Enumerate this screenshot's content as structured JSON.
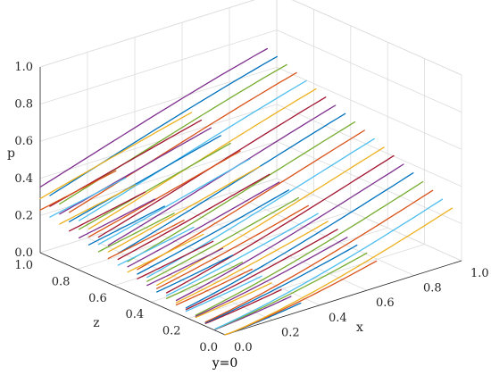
{
  "chart_data": {
    "type": "line",
    "projection": "3d",
    "title": "",
    "caption": "y=0",
    "xlabel": "x",
    "ylabel": "p",
    "zlabel": "z",
    "xlim": [
      0,
      1
    ],
    "zlim": [
      0,
      1
    ],
    "plim": [
      0,
      1
    ],
    "x_ticks": [
      "0.0",
      "0.2",
      "0.4",
      "0.6",
      "0.8",
      "1.0"
    ],
    "z_ticks": [
      "0.0",
      "0.2",
      "0.4",
      "0.6",
      "0.8",
      "1.0"
    ],
    "p_ticks": [
      "0.0",
      "0.2",
      "0.4",
      "0.6",
      "0.8",
      "1.0"
    ],
    "grid": true,
    "legend": "none",
    "series_colors": [
      "#0072BD",
      "#D95319",
      "#EDB120",
      "#7E2F8E",
      "#77AC30",
      "#4DBEEE",
      "#A2142F"
    ],
    "series": [
      {
        "points": [
          [
            0.0,
            0.0,
            1.0
          ],
          [
            1.0,
            0.0,
            0.85
          ]
        ]
      },
      {
        "points": [
          [
            0.0,
            0.0,
            0.8
          ],
          [
            1.0,
            0.0,
            0.82
          ]
        ]
      },
      {
        "points": [
          [
            0.0,
            0.0,
            0.6
          ],
          [
            1.0,
            0.0,
            0.78
          ]
        ]
      },
      {
        "points": [
          [
            0.0,
            0.0,
            0.4
          ],
          [
            1.0,
            0.0,
            0.74
          ]
        ]
      },
      {
        "points": [
          [
            0.0,
            0.0,
            0.2
          ],
          [
            1.0,
            0.0,
            0.7
          ]
        ]
      },
      {
        "points": [
          [
            0.0,
            0.0,
            0.1
          ],
          [
            1.0,
            0.0,
            0.6
          ]
        ]
      },
      {
        "points": [
          [
            0.0,
            0.0,
            0.05
          ],
          [
            1.0,
            0.0,
            0.5
          ]
        ]
      }
    ]
  }
}
